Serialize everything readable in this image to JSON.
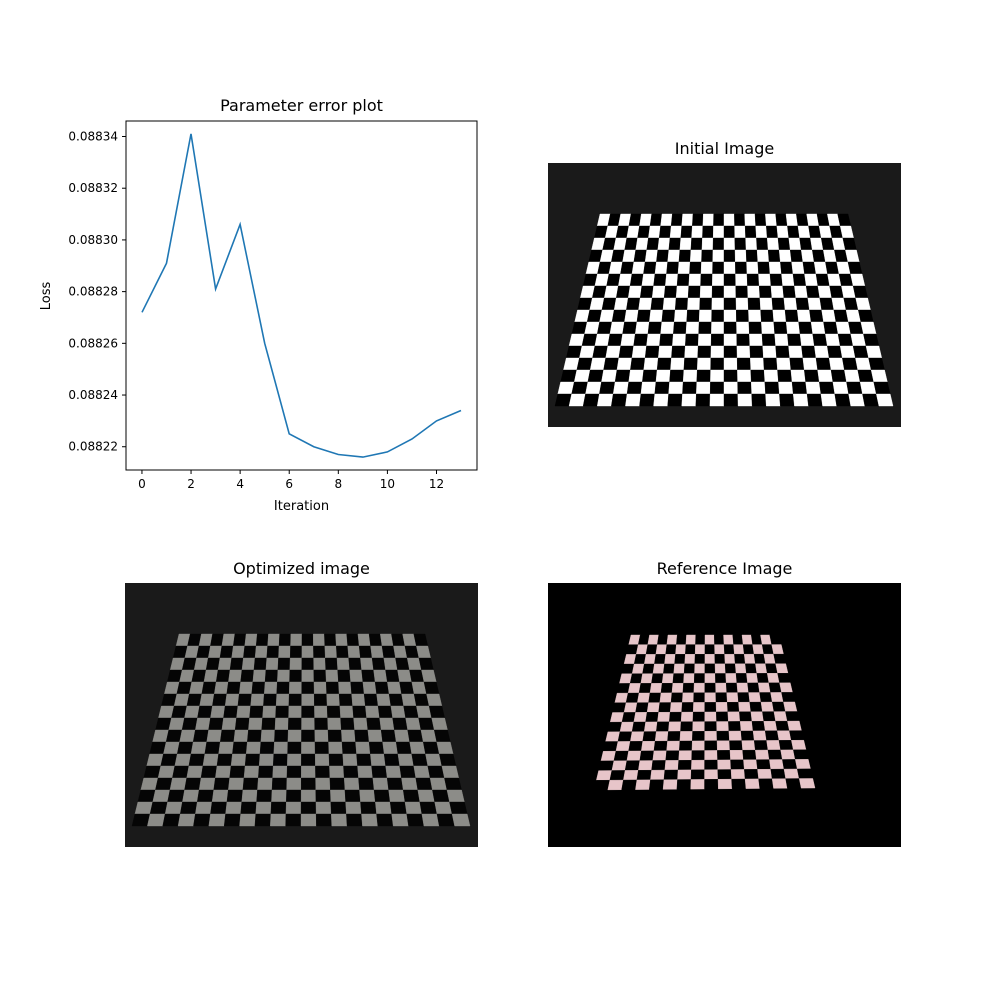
{
  "figure": {
    "panels": {
      "loss": {
        "title": "Parameter error plot"
      },
      "initial": {
        "title": "Initial Image"
      },
      "optimized": {
        "title": "Optimized image"
      },
      "reference": {
        "title": "Reference Image"
      }
    }
  },
  "chart_data": [
    {
      "type": "line",
      "title": "Parameter error plot",
      "xlabel": "Iteration",
      "ylabel": "Loss",
      "x": [
        0,
        1,
        2,
        3,
        4,
        5,
        6,
        7,
        8,
        9,
        10,
        11,
        12,
        13
      ],
      "series": [
        {
          "values": [
            0.088272,
            0.088291,
            0.088341,
            0.088281,
            0.088306,
            0.08826,
            0.088225,
            0.08822,
            0.088217,
            0.088216,
            0.088218,
            0.088223,
            0.08823,
            0.088234
          ],
          "color": "#1f77b4"
        }
      ],
      "xlim": [
        -0.65,
        13.65
      ],
      "ylim": [
        0.088211,
        0.088346
      ],
      "xticks": [
        0,
        2,
        4,
        6,
        8,
        10,
        12
      ],
      "yticks": [
        "0.08822",
        "0.08824",
        "0.08826",
        "0.08828",
        "0.08830",
        "0.08832",
        "0.08834"
      ],
      "ytick_values": [
        0.08822,
        0.08824,
        0.08826,
        0.08828,
        0.0883,
        0.08832,
        0.08834
      ],
      "grid": false
    }
  ],
  "images": {
    "initial": {
      "background": "#1a1a1a",
      "light_square": "#ffffff",
      "dark_square": "#000000",
      "rows": 16,
      "cols": 24
    },
    "optimized": {
      "background": "#1a1a1a",
      "light_square": "#8c8c88",
      "dark_square": "#050505",
      "rows": 16,
      "cols": 22
    },
    "reference": {
      "background": "#000000",
      "light_square": "#e7c5c9",
      "dark_square": "#000000",
      "rows": 16,
      "cols": 16
    }
  }
}
